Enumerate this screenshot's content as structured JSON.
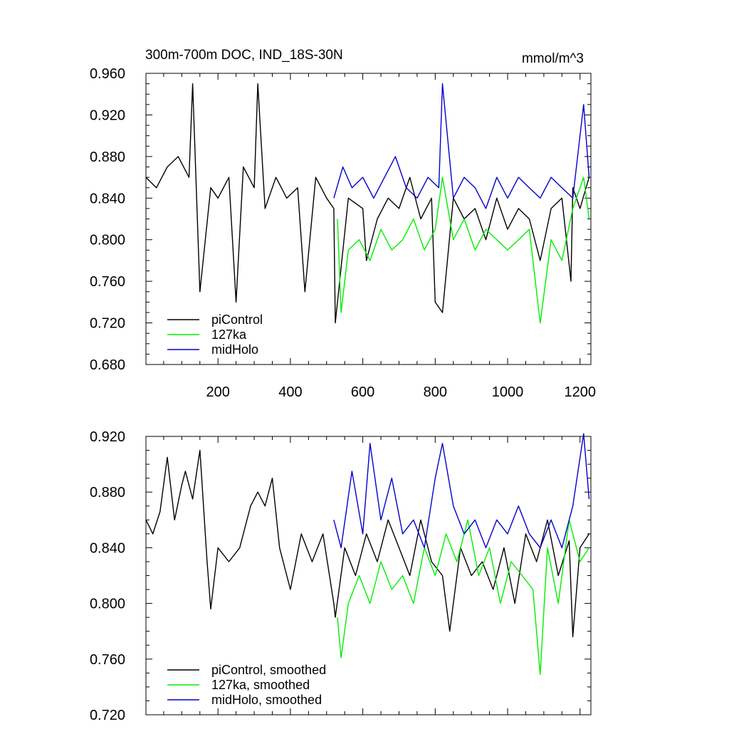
{
  "chart_data": [
    {
      "type": "line",
      "title": "300m-700m DOC, IND_18S-30N",
      "units": "mmol/m^3",
      "xlim": [
        1,
        1230
      ],
      "ylim": [
        0.68,
        0.96
      ],
      "xticks": [
        200,
        400,
        600,
        800,
        1000,
        1200
      ],
      "xtick_labels": [
        "200",
        "400",
        "600",
        "800",
        "1000",
        "1200"
      ],
      "yticks": [
        0.68,
        0.72,
        0.76,
        0.8,
        0.84,
        0.88,
        0.92,
        0.96
      ],
      "ytick_labels": [
        "0.680",
        "0.720",
        "0.760",
        "0.800",
        "0.840",
        "0.880",
        "0.920",
        "0.960"
      ],
      "legend_position": "bottom-left",
      "series": [
        {
          "name": "piControl",
          "color": "#000000",
          "x": [
            1,
            30,
            60,
            90,
            120,
            130,
            150,
            180,
            200,
            230,
            250,
            270,
            300,
            310,
            330,
            360,
            390,
            420,
            440,
            470,
            500,
            520,
            524,
            560,
            600,
            610,
            640,
            670,
            700,
            730,
            760,
            790,
            800,
            820,
            850,
            880,
            910,
            940,
            970,
            1000,
            1030,
            1060,
            1090,
            1120,
            1150,
            1175,
            1180,
            1200,
            1225
          ],
          "y": [
            0.86,
            0.85,
            0.87,
            0.88,
            0.86,
            0.95,
            0.75,
            0.85,
            0.84,
            0.86,
            0.74,
            0.87,
            0.85,
            0.95,
            0.83,
            0.86,
            0.84,
            0.85,
            0.75,
            0.86,
            0.84,
            0.83,
            0.72,
            0.84,
            0.83,
            0.78,
            0.82,
            0.84,
            0.83,
            0.86,
            0.82,
            0.84,
            0.74,
            0.73,
            0.84,
            0.82,
            0.83,
            0.8,
            0.84,
            0.81,
            0.83,
            0.82,
            0.78,
            0.83,
            0.84,
            0.76,
            0.85,
            0.83,
            0.86
          ]
        },
        {
          "name": "127ka",
          "color": "#00ee00",
          "x": [
            530,
            540,
            560,
            590,
            620,
            650,
            680,
            710,
            740,
            770,
            800,
            820,
            850,
            880,
            910,
            940,
            970,
            1000,
            1030,
            1060,
            1090,
            1120,
            1150,
            1180,
            1210,
            1225
          ],
          "y": [
            0.82,
            0.73,
            0.79,
            0.8,
            0.78,
            0.81,
            0.79,
            0.8,
            0.82,
            0.79,
            0.81,
            0.86,
            0.8,
            0.82,
            0.79,
            0.81,
            0.8,
            0.79,
            0.8,
            0.81,
            0.72,
            0.8,
            0.78,
            0.83,
            0.86,
            0.82
          ]
        },
        {
          "name": "midHolo",
          "color": "#0000cc",
          "x": [
            520,
            545,
            570,
            600,
            630,
            660,
            690,
            720,
            750,
            780,
            810,
            820,
            850,
            880,
            910,
            940,
            970,
            1000,
            1030,
            1060,
            1090,
            1120,
            1150,
            1180,
            1210,
            1225
          ],
          "y": [
            0.84,
            0.87,
            0.85,
            0.86,
            0.84,
            0.86,
            0.88,
            0.85,
            0.84,
            0.86,
            0.85,
            0.95,
            0.84,
            0.86,
            0.85,
            0.83,
            0.86,
            0.84,
            0.86,
            0.85,
            0.84,
            0.86,
            0.85,
            0.84,
            0.93,
            0.86
          ]
        }
      ]
    },
    {
      "type": "line",
      "xlim": [
        1,
        1230
      ],
      "ylim": [
        0.72,
        0.92
      ],
      "xticks": [
        200,
        400,
        600,
        800,
        1000,
        1200
      ],
      "yticks": [
        0.72,
        0.76,
        0.8,
        0.84,
        0.88,
        0.92
      ],
      "ytick_labels": [
        "0.720",
        "0.760",
        "0.800",
        "0.840",
        "0.880",
        "0.920"
      ],
      "legend_position": "bottom-left",
      "series": [
        {
          "name": "piControl, smoothed",
          "color": "#000000",
          "x": [
            1,
            20,
            40,
            60,
            80,
            100,
            110,
            130,
            150,
            170,
            180,
            200,
            230,
            260,
            290,
            310,
            330,
            350,
            370,
            400,
            430,
            460,
            490,
            520,
            524,
            550,
            580,
            610,
            640,
            670,
            700,
            730,
            760,
            790,
            820,
            840,
            870,
            900,
            930,
            960,
            990,
            1020,
            1050,
            1080,
            1110,
            1140,
            1170,
            1180,
            1200,
            1225
          ],
          "y": [
            0.86,
            0.85,
            0.866,
            0.905,
            0.86,
            0.885,
            0.895,
            0.875,
            0.91,
            0.83,
            0.796,
            0.84,
            0.83,
            0.84,
            0.87,
            0.88,
            0.87,
            0.89,
            0.84,
            0.81,
            0.85,
            0.83,
            0.85,
            0.8,
            0.79,
            0.84,
            0.82,
            0.85,
            0.83,
            0.86,
            0.84,
            0.82,
            0.86,
            0.83,
            0.82,
            0.78,
            0.84,
            0.82,
            0.83,
            0.81,
            0.84,
            0.8,
            0.85,
            0.83,
            0.86,
            0.82,
            0.845,
            0.776,
            0.84,
            0.85
          ]
        },
        {
          "name": "127ka, smoothed",
          "color": "#00ee00",
          "x": [
            530,
            540,
            560,
            590,
            620,
            650,
            680,
            710,
            740,
            770,
            800,
            830,
            860,
            890,
            920,
            950,
            980,
            1010,
            1040,
            1070,
            1090,
            1110,
            1140,
            1170,
            1200,
            1225
          ],
          "y": [
            0.79,
            0.761,
            0.8,
            0.82,
            0.8,
            0.83,
            0.81,
            0.82,
            0.8,
            0.84,
            0.82,
            0.85,
            0.83,
            0.86,
            0.82,
            0.84,
            0.8,
            0.83,
            0.82,
            0.81,
            0.749,
            0.84,
            0.8,
            0.86,
            0.83,
            0.84
          ]
        },
        {
          "name": "midHolo, smoothed",
          "color": "#0000cc",
          "x": [
            520,
            540,
            570,
            600,
            620,
            650,
            680,
            710,
            740,
            770,
            800,
            820,
            850,
            880,
            910,
            940,
            970,
            1000,
            1030,
            1060,
            1090,
            1120,
            1150,
            1180,
            1210,
            1225
          ],
          "y": [
            0.86,
            0.84,
            0.895,
            0.85,
            0.915,
            0.86,
            0.89,
            0.85,
            0.86,
            0.84,
            0.89,
            0.915,
            0.87,
            0.85,
            0.86,
            0.84,
            0.86,
            0.85,
            0.87,
            0.85,
            0.84,
            0.86,
            0.84,
            0.87,
            0.922,
            0.875
          ]
        }
      ]
    }
  ]
}
